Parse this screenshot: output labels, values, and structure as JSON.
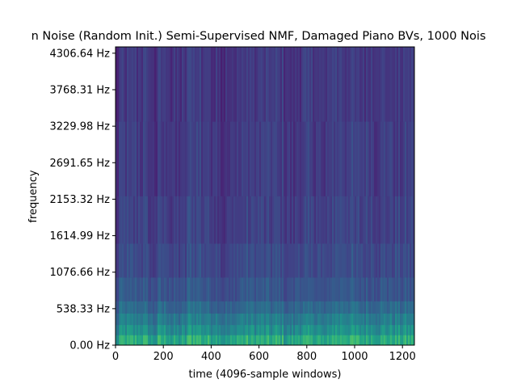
{
  "chart_data": {
    "type": "heatmap",
    "title": "n Noise (Random Init.) Semi-Supervised NMF, Damaged Piano BVs, 1000 Nois",
    "xlabel": "time (4096-sample windows)",
    "ylabel": "frequency",
    "xlim": [
      0,
      1250
    ],
    "ylim": [
      0,
      4400
    ],
    "x_ticks": [
      {
        "value": 0,
        "label": "0"
      },
      {
        "value": 200,
        "label": "200"
      },
      {
        "value": 400,
        "label": "400"
      },
      {
        "value": 600,
        "label": "600"
      },
      {
        "value": 800,
        "label": "800"
      },
      {
        "value": 1000,
        "label": "1000"
      },
      {
        "value": 1200,
        "label": "1200"
      }
    ],
    "y_ticks": [
      {
        "value": 0.0,
        "label": "0.00 Hz"
      },
      {
        "value": 538.33,
        "label": "538.33 Hz"
      },
      {
        "value": 1076.66,
        "label": "1076.66 Hz"
      },
      {
        "value": 1614.99,
        "label": "1614.99 Hz"
      },
      {
        "value": 2153.32,
        "label": "2153.32 Hz"
      },
      {
        "value": 2691.65,
        "label": "2691.65 Hz"
      },
      {
        "value": 3229.98,
        "label": "3229.98 Hz"
      },
      {
        "value": 3768.31,
        "label": "3768.31 Hz"
      },
      {
        "value": 4306.64,
        "label": "4306.64 Hz"
      }
    ],
    "colormap": "viridis",
    "grid": false,
    "colors": {
      "low": "#440154",
      "mid": "#31688e",
      "high": "#b5de2b"
    }
  }
}
